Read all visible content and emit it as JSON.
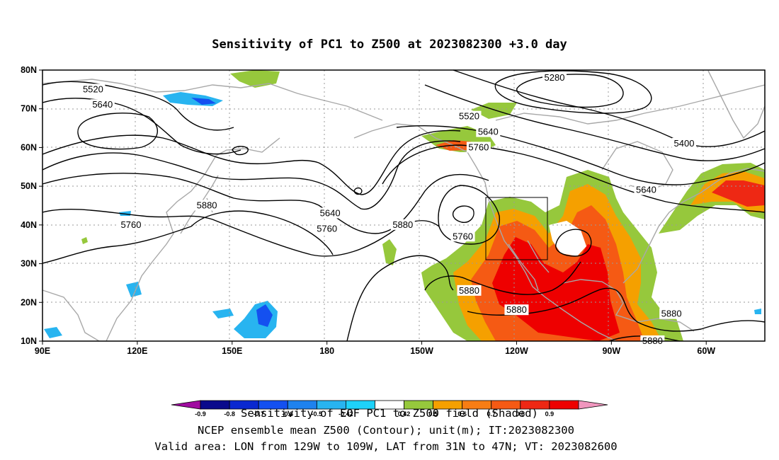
{
  "title": "Sensitivity of PC1 to Z500 at 2023082300 +3.0 day",
  "chart_data": {
    "type": "heatmap",
    "map_extent": {
      "lon": [
        90,
        293
      ],
      "lat": [
        10,
        80
      ]
    },
    "y_ticks": [
      {
        "lat": 80,
        "label": "80N"
      },
      {
        "lat": 70,
        "label": "70N"
      },
      {
        "lat": 60,
        "label": "60N"
      },
      {
        "lat": 50,
        "label": "50N"
      },
      {
        "lat": 40,
        "label": "40N"
      },
      {
        "lat": 30,
        "label": "30N"
      },
      {
        "lat": 20,
        "label": "20N"
      },
      {
        "lat": 10,
        "label": "10N"
      }
    ],
    "x_ticks": [
      {
        "lon": 90,
        "label": "90E"
      },
      {
        "lon": 120,
        "label": "120E"
      },
      {
        "lon": 150,
        "label": "150E"
      },
      {
        "lon": 180,
        "label": "180"
      },
      {
        "lon": 210,
        "label": "150W"
      },
      {
        "lon": 240,
        "label": "120W"
      },
      {
        "lon": 270,
        "label": "90W"
      },
      {
        "lon": 300,
        "label": "60W"
      }
    ],
    "grid": "dotted",
    "colorbar": {
      "labels": [
        "-0.9",
        "-0.8",
        "-0.7",
        "-0.6",
        "-0.5",
        "-0.42",
        "0.42",
        "0.5",
        "0.6",
        "0.7",
        "0.8",
        "0.9"
      ],
      "colors": [
        "#a00ca0",
        "#0a0a8c",
        "#0a28d0",
        "#1450f0",
        "#1e82ee",
        "#28b4f0",
        "#1ed2fa",
        "#ffffff",
        "#96c83c",
        "#f5a000",
        "#f77d14",
        "#f55a14",
        "#ee2814",
        "#ee0000",
        "#f096be"
      ],
      "caption": "Sensitivity of EOF PC1 to Z500 field (Shaded)"
    },
    "box": {
      "lon": [
        231,
        251
      ],
      "lat": [
        31,
        47
      ]
    },
    "contour_labels": [
      {
        "value": "5520",
        "lon": 106,
        "lat": 75
      },
      {
        "value": "5640",
        "lon": 109,
        "lat": 71
      },
      {
        "value": "5880",
        "lon": 142,
        "lat": 45
      },
      {
        "value": "5760",
        "lon": 118,
        "lat": 40
      },
      {
        "value": "5640",
        "lon": 181,
        "lat": 43
      },
      {
        "value": "5760",
        "lon": 180,
        "lat": 39
      },
      {
        "value": "5880",
        "lon": 204,
        "lat": 40
      },
      {
        "value": "5760",
        "lon": 223,
        "lat": 37
      },
      {
        "value": "5880",
        "lon": 225,
        "lat": 23
      },
      {
        "value": "5880",
        "lon": 240,
        "lat": 18
      },
      {
        "value": "5520",
        "lon": 225,
        "lat": 68
      },
      {
        "value": "5640",
        "lon": 231,
        "lat": 64
      },
      {
        "value": "5760",
        "lon": 228,
        "lat": 60
      },
      {
        "value": "5280",
        "lon": 252,
        "lat": 78
      },
      {
        "value": "5400",
        "lon": 293,
        "lat": 61
      },
      {
        "value": "5640",
        "lon": 281,
        "lat": 49
      },
      {
        "value": "5880",
        "lon": 289,
        "lat": 17
      },
      {
        "value": "5880",
        "lon": 283,
        "lat": 10
      }
    ]
  },
  "footer": {
    "line1": "NCEP ensemble mean Z500 (Contour); unit(m); IT:2023082300",
    "line2": "Valid area: LON from 129W to 109W, LAT from 31N to 47N; VT: 2023082600"
  }
}
